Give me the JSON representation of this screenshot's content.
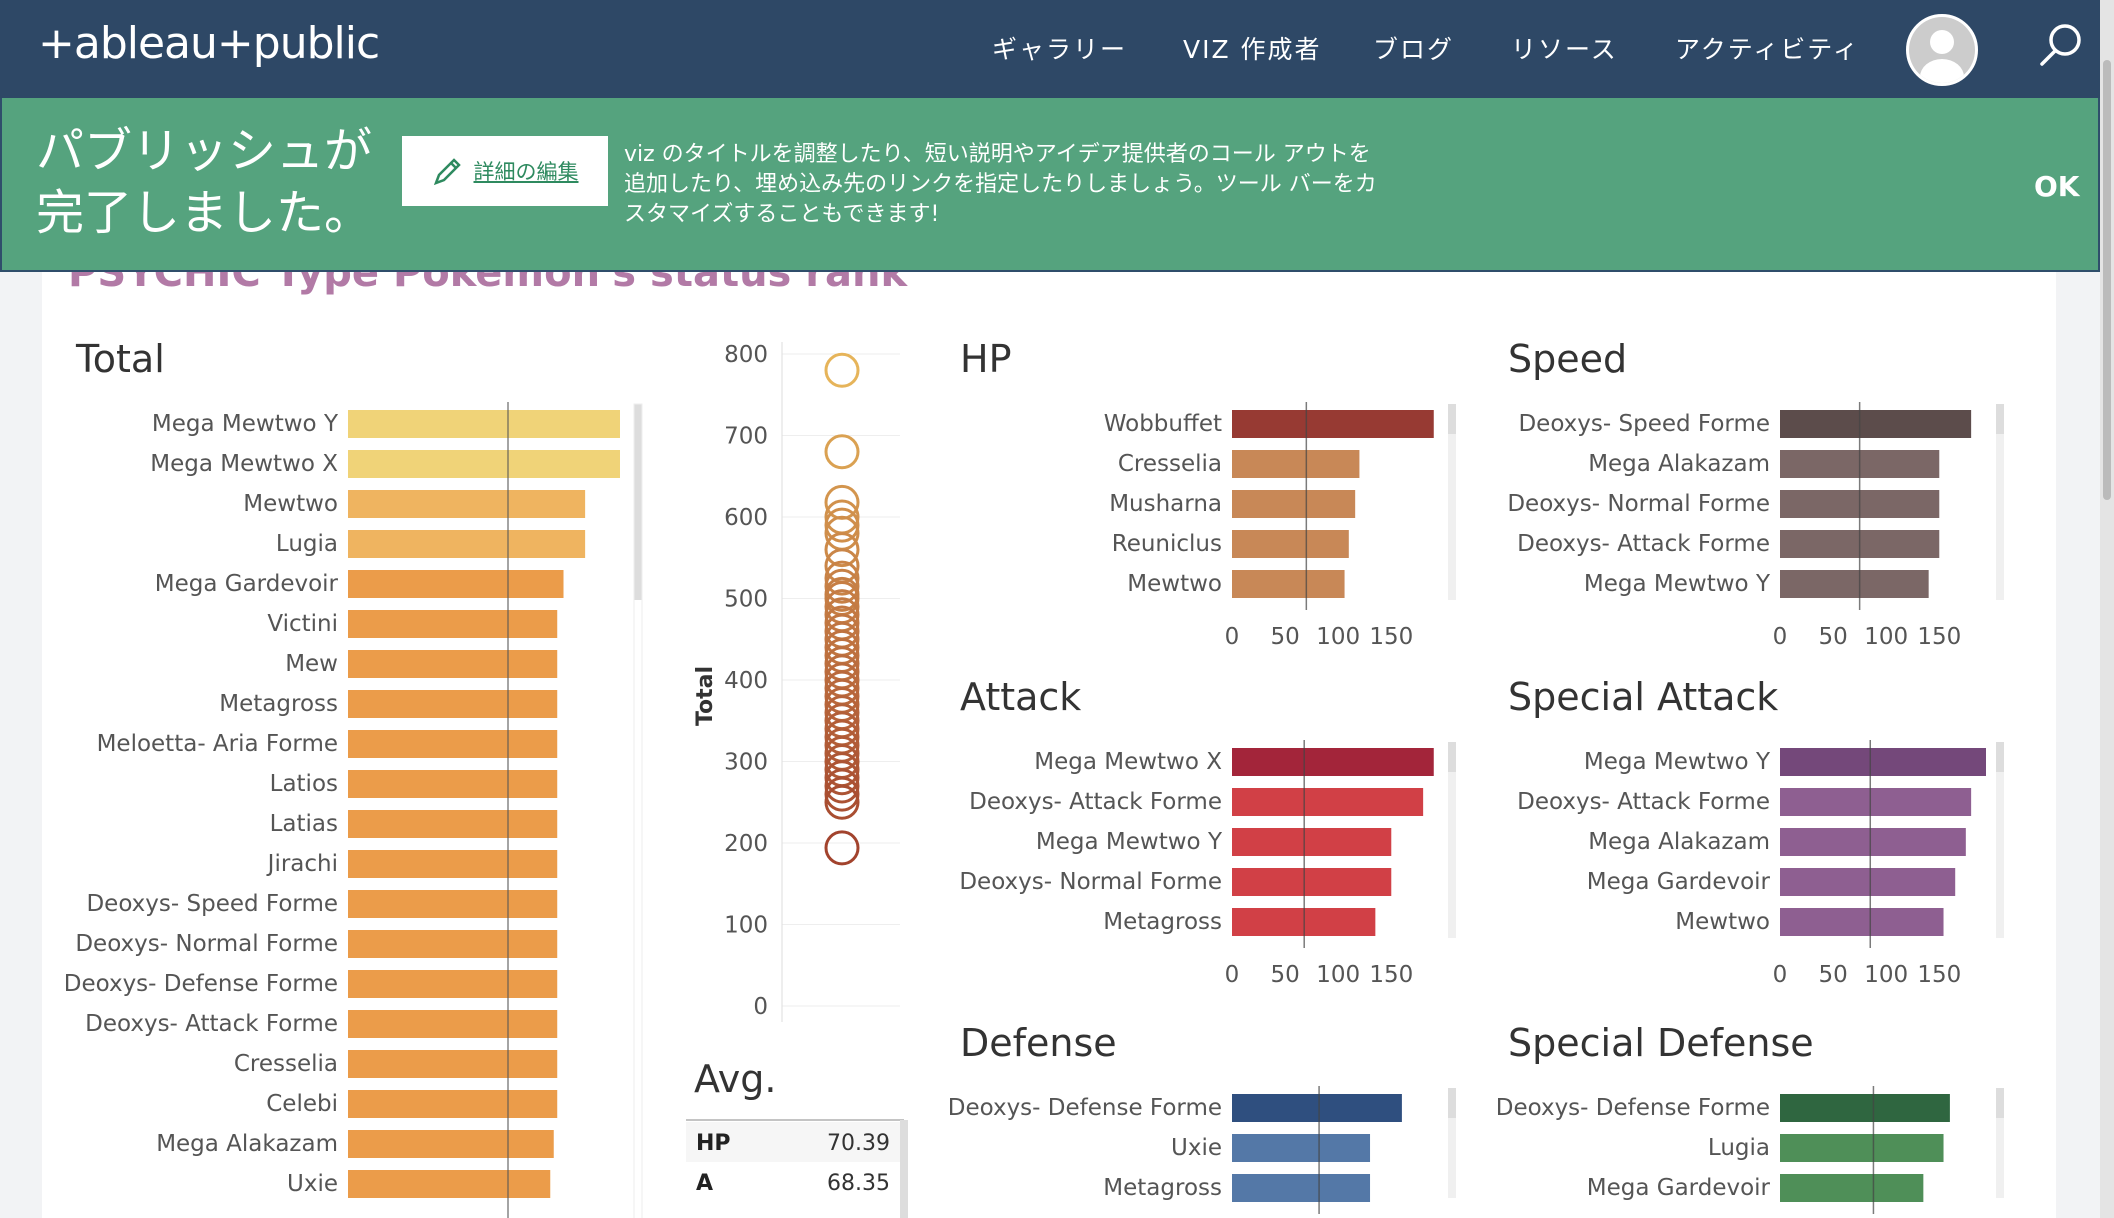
{
  "header": {
    "logo": "+ableau+public",
    "nav": [
      "ギャラリー",
      "VIZ 作成者",
      "ブログ",
      "リソース",
      "アクティビティ"
    ]
  },
  "banner": {
    "title": "パブリッシュが完了しました。",
    "edit_label": "詳細の編集",
    "description": "viz のタイトルを調整したり、短い説明やアイデア提供者のコール アウトを追加したり、埋め込み先のリンクを指定したりしましょう。ツール バーをカスタマイズすることもできます!",
    "ok_label": "OK"
  },
  "viz": {
    "title": "PSYCHIC Type Pokemon's status rank",
    "total": {
      "title": "Total",
      "labels": [
        "Mega Mewtwo Y",
        "Mega Mewtwo X",
        "Mewtwo",
        "Lugia",
        "Mega Gardevoir",
        "Victini",
        "Mew",
        "Metagross",
        "Meloetta- Aria Forme",
        "Latios",
        "Latias",
        "Jirachi",
        "Deoxys- Speed Forme",
        "Deoxys- Normal Forme",
        "Deoxys- Defense Forme",
        "Deoxys- Attack Forme",
        "Cresselia",
        "Celebi",
        "Mega Alakazam",
        "Uxie"
      ],
      "values": [
        780,
        780,
        680,
        680,
        618,
        600,
        600,
        600,
        600,
        600,
        600,
        600,
        600,
        600,
        600,
        600,
        600,
        600,
        590,
        580
      ],
      "ref": 460
    },
    "scatter": {
      "ylabel": "Total",
      "ticks": [
        "800",
        "700",
        "600",
        "500",
        "400",
        "300",
        "200",
        "100",
        "0"
      ],
      "values": [
        780,
        680,
        618,
        600,
        590,
        580,
        560,
        540,
        525,
        515,
        505,
        500,
        490,
        480,
        470,
        460,
        450,
        440,
        430,
        420,
        410,
        400,
        390,
        380,
        370,
        360,
        350,
        340,
        330,
        320,
        310,
        300,
        290,
        280,
        270,
        260,
        250,
        194
      ]
    },
    "avg": {
      "title": "Avg.",
      "rows": [
        {
          "k": "HP",
          "v": "70.39"
        },
        {
          "k": "A",
          "v": "68.35"
        }
      ]
    },
    "hp": {
      "title": "HP",
      "labels": [
        "Wobbuffet",
        "Cresselia",
        "Musharna",
        "Reuniclus",
        "Mewtwo"
      ],
      "values": [
        190,
        120,
        116,
        110,
        106
      ],
      "ref": 70,
      "ticks": [
        "0",
        "50",
        "100",
        "150"
      ]
    },
    "speed": {
      "title": "Speed",
      "labels": [
        "Deoxys- Speed Forme",
        "Mega Alakazam",
        "Deoxys- Normal Forme",
        "Deoxys- Attack Forme",
        "Mega Mewtwo Y"
      ],
      "values": [
        180,
        150,
        150,
        150,
        140
      ],
      "ref": 75,
      "ticks": [
        "0",
        "50",
        "100",
        "150"
      ]
    },
    "attack": {
      "title": "Attack",
      "labels": [
        "Mega Mewtwo X",
        "Deoxys- Attack Forme",
        "Mega Mewtwo Y",
        "Deoxys- Normal Forme",
        "Metagross"
      ],
      "values": [
        190,
        180,
        150,
        150,
        135
      ],
      "ref": 68,
      "ticks": [
        "0",
        "50",
        "100",
        "150"
      ]
    },
    "spattack": {
      "title": "Special Attack",
      "labels": [
        "Mega Mewtwo Y",
        "Deoxys- Attack Forme",
        "Mega Alakazam",
        "Mega Gardevoir",
        "Mewtwo"
      ],
      "values": [
        194,
        180,
        175,
        165,
        154
      ],
      "ref": 85,
      "ticks": [
        "0",
        "50",
        "100",
        "150"
      ]
    },
    "defense": {
      "title": "Defense",
      "labels": [
        "Deoxys- Defense Forme",
        "Uxie",
        "Metagross"
      ],
      "values": [
        160,
        130,
        130
      ],
      "ref": 82
    },
    "spdefense": {
      "title": "Special Defense",
      "labels": [
        "Deoxys- Defense Forme",
        "Lugia",
        "Mega Gardevoir"
      ],
      "values": [
        160,
        154,
        135
      ],
      "ref": 88
    }
  },
  "colors": {
    "header": "#2e4866",
    "banner": "#55a37e",
    "total_top": "#f0d378",
    "total_mid": "#efb460",
    "total_main": "#eb9c4a",
    "hp_top": "#973a33",
    "hp_main": "#c88857",
    "speed_top": "#5c4c4b",
    "speed_main": "#7b6766",
    "attack_top": "#a3253a",
    "attack_main": "#d14046",
    "spattack_top": "#74487a",
    "spattack_main": "#8e5f91",
    "defense_top": "#2f4f7f",
    "defense_main": "#5478a7",
    "spdefense_top": "#2f6640",
    "spdefense_main": "#4f8f58"
  }
}
